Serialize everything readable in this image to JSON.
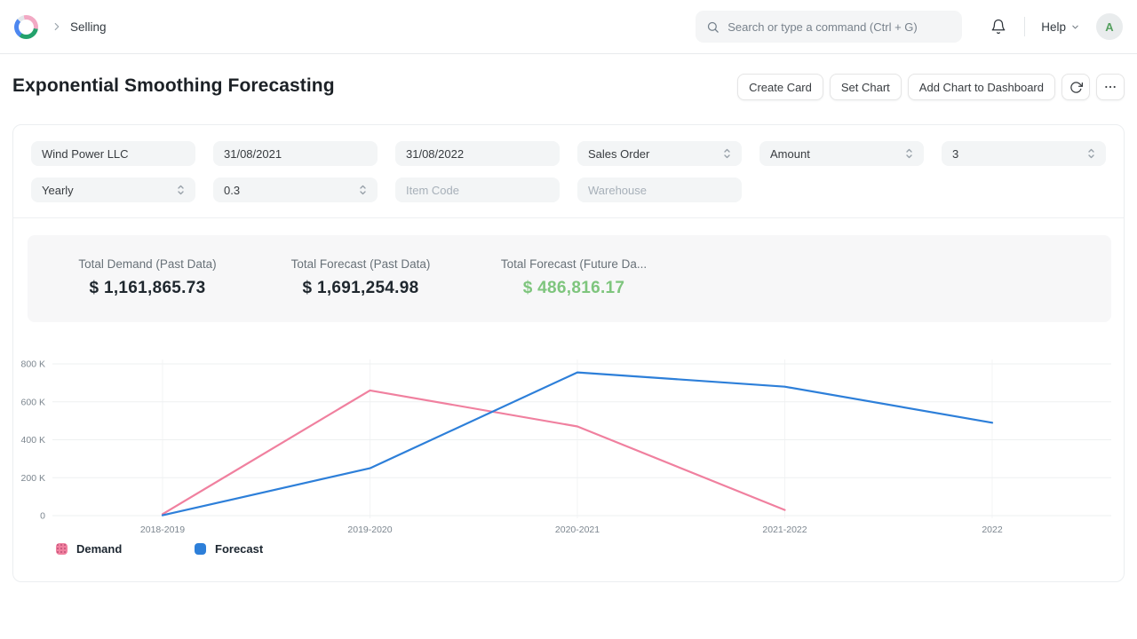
{
  "navbar": {
    "breadcrumb": "Selling",
    "search_placeholder": "Search or type a command (Ctrl + G)",
    "help_label": "Help",
    "avatar_letter": "A"
  },
  "page": {
    "title": "Exponential Smoothing Forecasting",
    "actions": [
      "Create Card",
      "Set Chart",
      "Add Chart to Dashboard"
    ]
  },
  "filters": {
    "company": {
      "value": "Wind Power LLC"
    },
    "from_date": {
      "value": "31/08/2021"
    },
    "to_date": {
      "value": "31/08/2022"
    },
    "doctype": {
      "value": "Sales Order"
    },
    "based_on": {
      "value": "Amount"
    },
    "periods": {
      "value": "3"
    },
    "frequency": {
      "value": "Yearly"
    },
    "smoothing_constant": {
      "value": "0.3"
    },
    "item_code": {
      "placeholder": "Item Code"
    },
    "warehouse": {
      "placeholder": "Warehouse"
    }
  },
  "summary": [
    {
      "label": "Total Demand (Past Data)",
      "value": "$ 1,161,865.73",
      "color": "#1f272e"
    },
    {
      "label": "Total Forecast (Past Data)",
      "value": "$ 1,691,254.98",
      "color": "#1f272e"
    },
    {
      "label": "Total Forecast (Future Da...",
      "value": "$ 486,816.17",
      "color": "#7ec57d"
    }
  ],
  "chart_data": {
    "type": "line",
    "title": "",
    "categories": [
      "2018-2019",
      "2019-2020",
      "2020-2021",
      "2021-2022",
      "2022"
    ],
    "series": [
      {
        "name": "Demand",
        "color": "#f0809f",
        "values": [
          8000,
          660000,
          470000,
          30000,
          null
        ]
      },
      {
        "name": "Forecast",
        "color": "#2d7fd9",
        "values": [
          2000,
          250000,
          755000,
          680000,
          490000
        ]
      }
    ],
    "y_ticks": [
      "0",
      "200 K",
      "400 K",
      "600 K",
      "800 K"
    ],
    "ylim": [
      0,
      800000
    ],
    "grid": true,
    "legend_position": "bottom"
  },
  "colors": {
    "grid_h": "#eef0f1",
    "grid_v": "#f3f4f5",
    "axis_text": "#7c868f"
  }
}
